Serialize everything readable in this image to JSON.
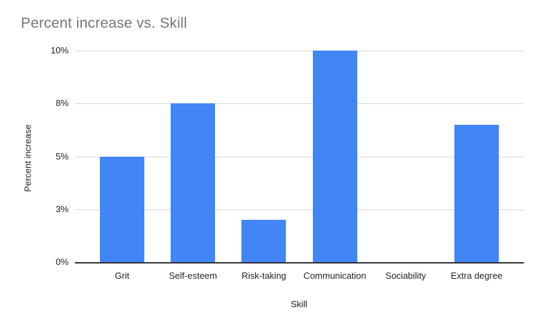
{
  "chart_data": {
    "type": "bar",
    "title": "Percent increase vs. Skill",
    "xlabel": "Skill",
    "ylabel": "Percent increase",
    "categories": [
      "Grit",
      "Self-esteem",
      "Risk-taking",
      "Communication",
      "Sociability",
      "Extra degree"
    ],
    "values": [
      5,
      7.5,
      2,
      10,
      0,
      6.5
    ],
    "ylim": [
      0,
      10
    ],
    "y_ticks": [
      {
        "value": 0,
        "label": "0%"
      },
      {
        "value": 2.5,
        "label": "3%"
      },
      {
        "value": 5,
        "label": "5%"
      },
      {
        "value": 7.5,
        "label": "8%"
      },
      {
        "value": 10,
        "label": "10%"
      }
    ],
    "grid": true,
    "legend_position": "none",
    "colors": {
      "bar": "#4285f4",
      "title_text": "#757575",
      "axis_text": "#222222",
      "gridline": "#d9d9d9",
      "baseline": "#333333",
      "background": "#ffffff"
    }
  }
}
